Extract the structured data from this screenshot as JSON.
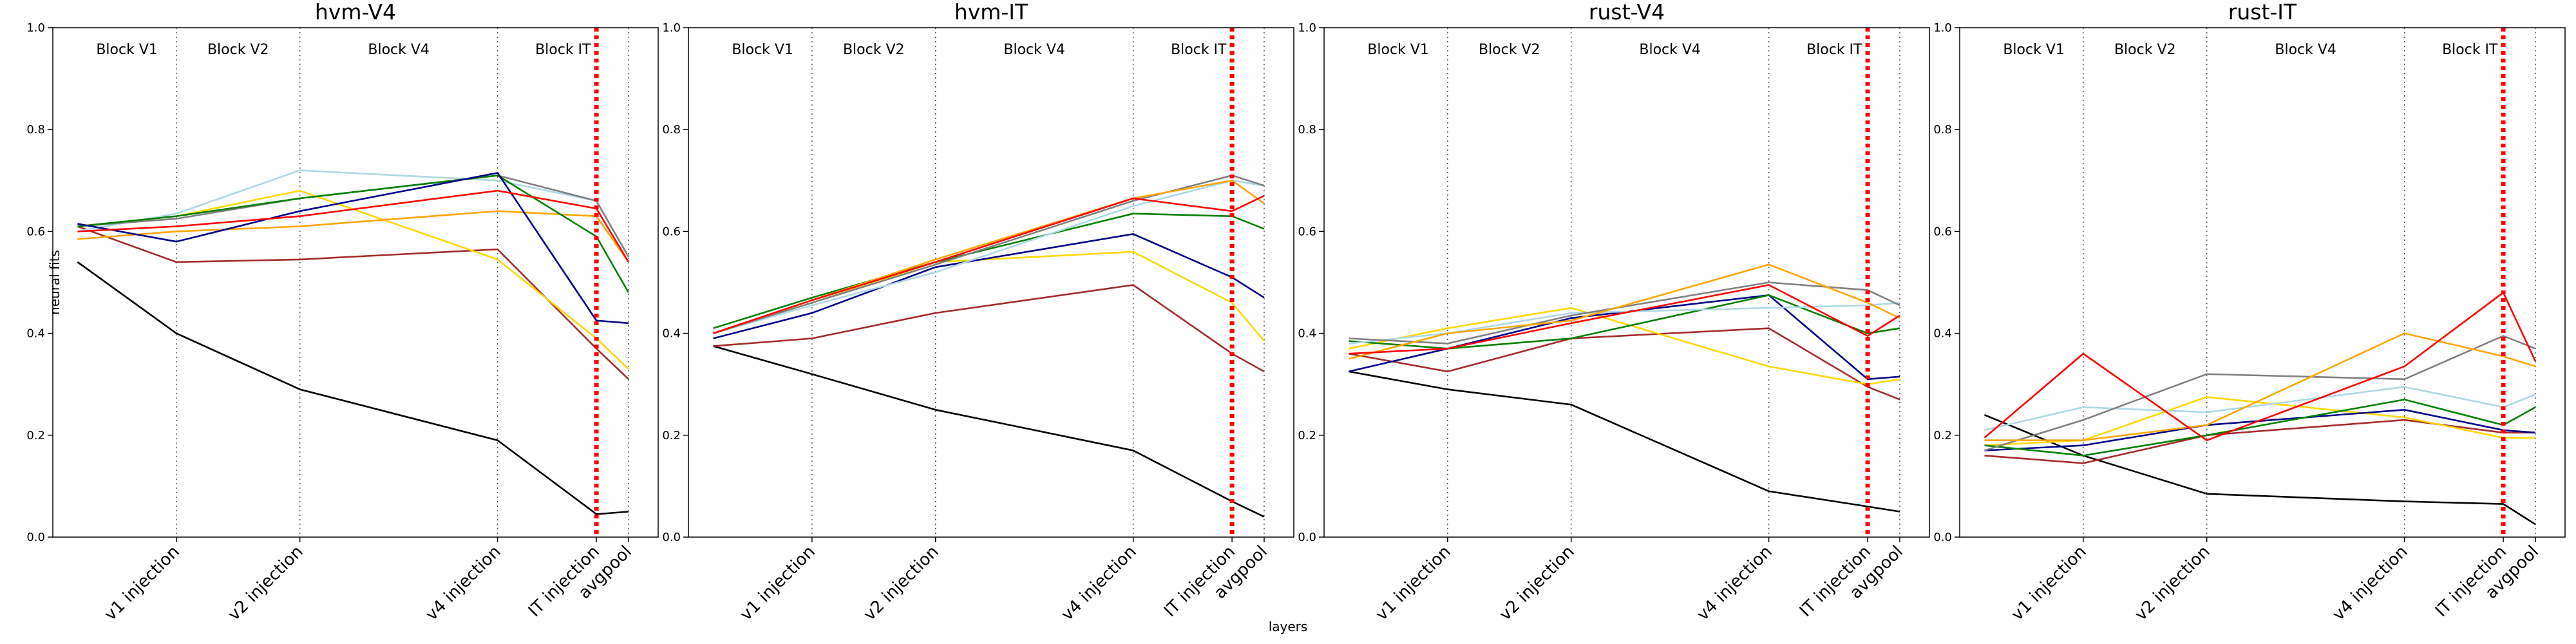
{
  "xlabel": "layers",
  "chart_data": [
    {
      "type": "line",
      "title": "hvm-V4",
      "ylabel": "neural fits",
      "x": [
        1,
        5,
        10,
        18,
        22,
        23.3
      ],
      "xlim": [
        0,
        24.5
      ],
      "xticks": [
        {
          "value": 5,
          "label": "v1 injection"
        },
        {
          "value": 10,
          "label": "v2 injection"
        },
        {
          "value": 18,
          "label": "v4 injection"
        },
        {
          "value": 22,
          "label": "IT injection"
        },
        {
          "value": 23.3,
          "label": "avgpool"
        }
      ],
      "ylim": [
        0,
        1
      ],
      "yticks": [
        {
          "value": 0,
          "label": "0.0"
        },
        {
          "value": 0.2,
          "label": "0.2"
        },
        {
          "value": 0.4,
          "label": "0.4"
        },
        {
          "value": 0.6,
          "label": "0.6"
        },
        {
          "value": 0.8,
          "label": "0.8"
        },
        {
          "value": 1,
          "label": "1.0"
        }
      ],
      "blocks": [
        "Block V1",
        "Block V2",
        "Block V4",
        "Block IT"
      ],
      "block_lines": [
        5,
        10,
        18,
        23.3
      ],
      "marker_line": {
        "x": 22,
        "color": "#ff0000"
      },
      "series": [
        {
          "color": "#000000",
          "values": [
            0.54,
            0.4,
            0.29,
            0.19,
            0.045,
            0.05
          ]
        },
        {
          "color": "#a52a2a",
          "values": [
            0.61,
            0.54,
            0.545,
            0.565,
            0.37,
            0.31
          ]
        },
        {
          "color": "#ffd700",
          "values": [
            0.61,
            0.63,
            0.68,
            0.545,
            0.39,
            0.33
          ]
        },
        {
          "color": "#ffa500",
          "values": [
            0.585,
            0.6,
            0.61,
            0.64,
            0.63,
            0.54
          ]
        },
        {
          "color": "#add8e6",
          "values": [
            0.6,
            0.635,
            0.72,
            0.7,
            0.66,
            0.55
          ]
        },
        {
          "color": "#808080",
          "values": [
            0.61,
            0.625,
            0.665,
            0.71,
            0.66,
            0.55
          ]
        },
        {
          "color": "#008000",
          "values": [
            0.61,
            0.63,
            0.665,
            0.71,
            0.59,
            0.48
          ]
        },
        {
          "color": "#00008b",
          "values": [
            0.615,
            0.58,
            0.64,
            0.715,
            0.425,
            0.42
          ]
        },
        {
          "color": "#ff0000",
          "values": [
            0.6,
            0.61,
            0.63,
            0.68,
            0.645,
            0.54
          ]
        }
      ]
    },
    {
      "type": "line",
      "title": "hvm-IT",
      "x": [
        1,
        5,
        10,
        18,
        22,
        23.3
      ],
      "xlim": [
        0,
        24.5
      ],
      "xticks": [
        {
          "value": 5,
          "label": "v1 injection"
        },
        {
          "value": 10,
          "label": "v2 injection"
        },
        {
          "value": 18,
          "label": "v4 injection"
        },
        {
          "value": 22,
          "label": "IT injection"
        },
        {
          "value": 23.3,
          "label": "avgpool"
        }
      ],
      "ylim": [
        0,
        1
      ],
      "yticks": [
        {
          "value": 0,
          "label": "0.0"
        },
        {
          "value": 0.2,
          "label": "0.2"
        },
        {
          "value": 0.4,
          "label": "0.4"
        },
        {
          "value": 0.6,
          "label": "0.6"
        },
        {
          "value": 0.8,
          "label": "0.8"
        },
        {
          "value": 1,
          "label": "1.0"
        }
      ],
      "blocks": [
        "Block V1",
        "Block V2",
        "Block V4",
        "Block IT"
      ],
      "block_lines": [
        5,
        10,
        18,
        23.3
      ],
      "marker_line": {
        "x": 22,
        "color": "#ff0000"
      },
      "series": [
        {
          "color": "#000000",
          "values": [
            0.375,
            0.32,
            0.25,
            0.17,
            0.07,
            0.04
          ]
        },
        {
          "color": "#a52a2a",
          "values": [
            0.375,
            0.39,
            0.44,
            0.495,
            0.36,
            0.325
          ]
        },
        {
          "color": "#ffd700",
          "values": [
            0.4,
            0.46,
            0.54,
            0.56,
            0.46,
            0.385
          ]
        },
        {
          "color": "#00008b",
          "values": [
            0.39,
            0.44,
            0.53,
            0.595,
            0.51,
            0.47
          ]
        },
        {
          "color": "#008000",
          "values": [
            0.41,
            0.47,
            0.54,
            0.635,
            0.63,
            0.605
          ]
        },
        {
          "color": "#add8e6",
          "values": [
            0.4,
            0.455,
            0.52,
            0.65,
            0.7,
            0.69
          ]
        },
        {
          "color": "#808080",
          "values": [
            0.4,
            0.46,
            0.535,
            0.66,
            0.71,
            0.69
          ]
        },
        {
          "color": "#ffa500",
          "values": [
            0.4,
            0.465,
            0.545,
            0.665,
            0.7,
            0.655
          ]
        },
        {
          "color": "#ff0000",
          "values": [
            0.4,
            0.465,
            0.54,
            0.665,
            0.64,
            0.67
          ]
        }
      ]
    },
    {
      "type": "line",
      "title": "rust-V4",
      "x": [
        1,
        5,
        10,
        18,
        22,
        23.3
      ],
      "xlim": [
        0,
        24.5
      ],
      "xticks": [
        {
          "value": 5,
          "label": "v1 injection"
        },
        {
          "value": 10,
          "label": "v2 injection"
        },
        {
          "value": 18,
          "label": "v4 injection"
        },
        {
          "value": 22,
          "label": "IT injection"
        },
        {
          "value": 23.3,
          "label": "avgpool"
        }
      ],
      "ylim": [
        0,
        1
      ],
      "yticks": [
        {
          "value": 0,
          "label": "0.0"
        },
        {
          "value": 0.2,
          "label": "0.2"
        },
        {
          "value": 0.4,
          "label": "0.4"
        },
        {
          "value": 0.6,
          "label": "0.6"
        },
        {
          "value": 0.8,
          "label": "0.8"
        },
        {
          "value": 1,
          "label": "1.0"
        }
      ],
      "blocks": [
        "Block V1",
        "Block V2",
        "Block V4",
        "Block IT"
      ],
      "block_lines": [
        5,
        10,
        18,
        23.3
      ],
      "marker_line": {
        "x": 22,
        "color": "#ff0000"
      },
      "series": [
        {
          "color": "#000000",
          "values": [
            0.325,
            0.29,
            0.26,
            0.09,
            0.06,
            0.05
          ]
        },
        {
          "color": "#a52a2a",
          "values": [
            0.36,
            0.325,
            0.39,
            0.41,
            0.295,
            0.27
          ]
        },
        {
          "color": "#ffd700",
          "values": [
            0.37,
            0.41,
            0.45,
            0.335,
            0.3,
            0.31
          ]
        },
        {
          "color": "#00008b",
          "values": [
            0.325,
            0.37,
            0.43,
            0.475,
            0.31,
            0.315
          ]
        },
        {
          "color": "#008000",
          "values": [
            0.385,
            0.37,
            0.39,
            0.475,
            0.4,
            0.41
          ]
        },
        {
          "color": "#add8e6",
          "values": [
            0.38,
            0.4,
            0.44,
            0.45,
            0.455,
            0.46
          ]
        },
        {
          "color": "#808080",
          "values": [
            0.39,
            0.38,
            0.435,
            0.5,
            0.485,
            0.455
          ]
        },
        {
          "color": "#ffa500",
          "values": [
            0.35,
            0.4,
            0.425,
            0.535,
            0.46,
            0.43
          ]
        },
        {
          "color": "#ff0000",
          "values": [
            0.36,
            0.37,
            0.42,
            0.495,
            0.395,
            0.435
          ]
        }
      ]
    },
    {
      "type": "line",
      "title": "rust-IT",
      "x": [
        1,
        5,
        10,
        18,
        22,
        23.3
      ],
      "xlim": [
        0,
        24.5
      ],
      "xticks": [
        {
          "value": 5,
          "label": "v1 injection"
        },
        {
          "value": 10,
          "label": "v2 injection"
        },
        {
          "value": 18,
          "label": "v4 injection"
        },
        {
          "value": 22,
          "label": "IT injection"
        },
        {
          "value": 23.3,
          "label": "avgpool"
        }
      ],
      "ylim": [
        0,
        1
      ],
      "yticks": [
        {
          "value": 0,
          "label": "0.0"
        },
        {
          "value": 0.2,
          "label": "0.2"
        },
        {
          "value": 0.4,
          "label": "0.4"
        },
        {
          "value": 0.6,
          "label": "0.6"
        },
        {
          "value": 0.8,
          "label": "0.8"
        },
        {
          "value": 1,
          "label": "1.0"
        }
      ],
      "blocks": [
        "Block V1",
        "Block V2",
        "Block V4",
        "Block IT"
      ],
      "block_lines": [
        5,
        10,
        18,
        23.3
      ],
      "marker_line": {
        "x": 22,
        "color": "#ff0000"
      },
      "series": [
        {
          "color": "#000000",
          "values": [
            0.24,
            0.16,
            0.085,
            0.07,
            0.065,
            0.025
          ]
        },
        {
          "color": "#a52a2a",
          "values": [
            0.16,
            0.145,
            0.2,
            0.23,
            0.205,
            0.205
          ]
        },
        {
          "color": "#ffd700",
          "values": [
            0.18,
            0.19,
            0.275,
            0.235,
            0.195,
            0.195
          ]
        },
        {
          "color": "#00008b",
          "values": [
            0.17,
            0.18,
            0.22,
            0.25,
            0.21,
            0.205
          ]
        },
        {
          "color": "#008000",
          "values": [
            0.18,
            0.16,
            0.2,
            0.27,
            0.22,
            0.255
          ]
        },
        {
          "color": "#add8e6",
          "values": [
            0.21,
            0.255,
            0.245,
            0.295,
            0.255,
            0.28
          ]
        },
        {
          "color": "#808080",
          "values": [
            0.17,
            0.23,
            0.32,
            0.31,
            0.395,
            0.37
          ]
        },
        {
          "color": "#ffa500",
          "values": [
            0.19,
            0.19,
            0.22,
            0.4,
            0.355,
            0.335
          ]
        },
        {
          "color": "#ff0000",
          "values": [
            0.195,
            0.36,
            0.19,
            0.335,
            0.48,
            0.345
          ]
        }
      ]
    }
  ]
}
